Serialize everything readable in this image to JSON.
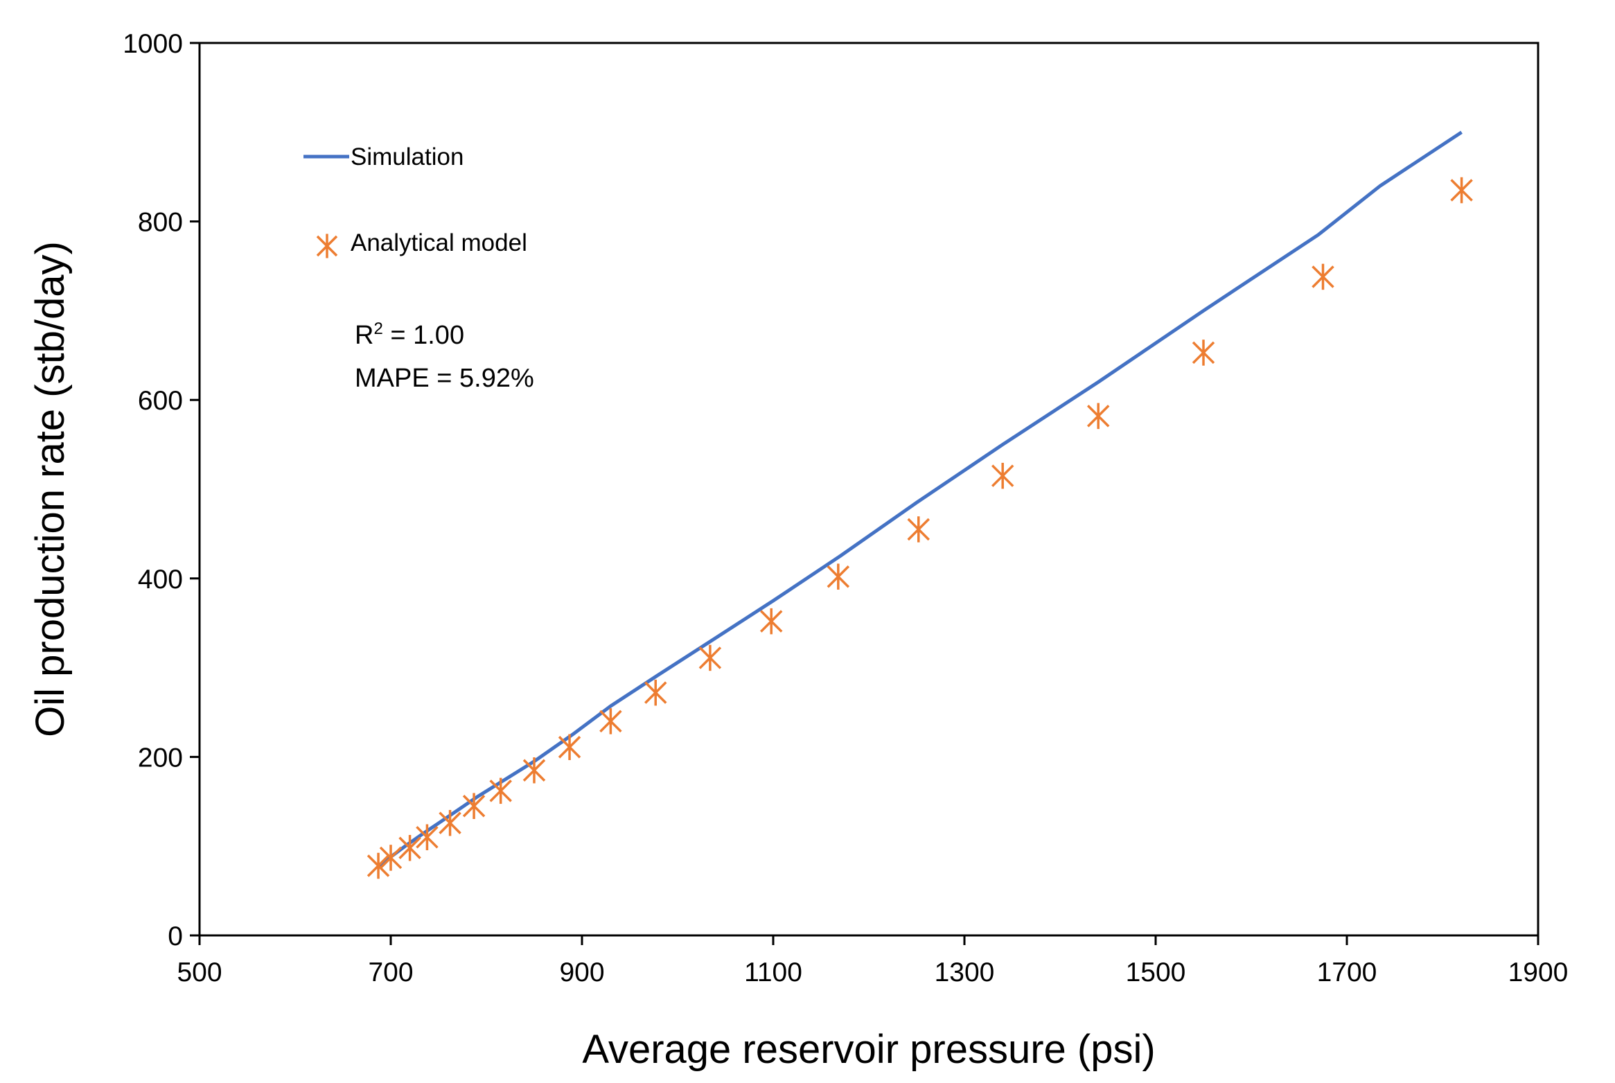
{
  "chart_data": {
    "type": "line+scatter",
    "xlabel": "Average reservoir pressure (psi)",
    "ylabel": "Oil production rate (stb/day)",
    "xlim": [
      500,
      1900
    ],
    "ylim": [
      0,
      1000
    ],
    "x_ticks": [
      500,
      700,
      900,
      1100,
      1300,
      1500,
      1700,
      1900
    ],
    "y_ticks": [
      0,
      200,
      400,
      600,
      800,
      1000
    ],
    "x_tick_labels": [
      "500",
      "700",
      "900",
      "1100",
      "1300",
      "1500",
      "1700",
      "1900"
    ],
    "y_tick_labels": [
      "0",
      "200",
      "400",
      "600",
      "800",
      "1000"
    ],
    "series": [
      {
        "name": "Simulation",
        "kind": "line",
        "color": "#4472C4",
        "x": [
          688,
          700,
          715,
          735,
          760,
          790,
          820,
          850,
          890,
          930,
          980,
          1035,
          1100,
          1170,
          1250,
          1340,
          1440,
          1550,
          1670,
          1735,
          1820
        ],
        "y": [
          78,
          88,
          100,
          115,
          133,
          155,
          175,
          195,
          225,
          257,
          292,
          330,
          375,
          425,
          485,
          550,
          620,
          700,
          785,
          840,
          900
        ]
      },
      {
        "name": "Analytical model",
        "kind": "scatter",
        "marker": "asterisk",
        "color": "#ED7D31",
        "x": [
          687,
          700,
          720,
          738,
          762,
          787,
          815,
          850,
          887,
          930,
          977,
          1034,
          1098,
          1168,
          1252,
          1340,
          1440,
          1550,
          1675,
          1820
        ],
        "y": [
          78,
          87,
          98,
          110,
          126,
          145,
          162,
          185,
          211,
          240,
          272,
          311,
          352,
          402,
          455,
          515,
          582,
          653,
          738,
          835
        ]
      }
    ],
    "annotations": {
      "r2_prefix": "R",
      "r2_superscript": "2",
      "r2_value": " = 1.00",
      "mape": "MAPE = 5.92%"
    }
  }
}
